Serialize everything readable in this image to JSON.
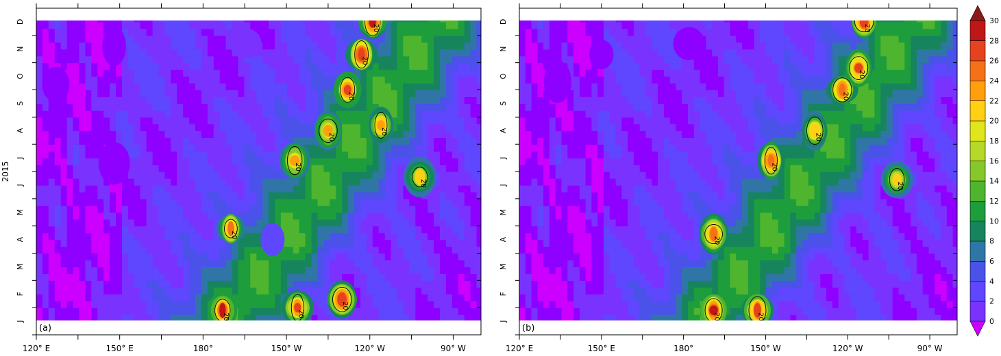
{
  "chart_data": [
    {
      "type": "heatmap",
      "panel_label": "(a)",
      "ylabel": "2015",
      "xlabel": "",
      "title": "",
      "x_ticks": [
        "120° E",
        "150° E",
        "180°",
        "150° W",
        "120° W",
        "90° W"
      ],
      "x_tick_lon": [
        120,
        150,
        180,
        210,
        240,
        270
      ],
      "x_range_lon": [
        120,
        280
      ],
      "y_ticks": [
        "J",
        "F",
        "M",
        "A",
        "M",
        "J",
        "J",
        "A",
        "S",
        "O",
        "N",
        "D"
      ],
      "y_range_month": [
        -0.5,
        11.5
      ],
      "data_range_month": [
        0,
        11
      ],
      "contour_level": 20,
      "contour_label": "20",
      "features": [
        {
          "lon": 127,
          "month": 8.7,
          "value": 1
        },
        {
          "lon": 148,
          "month": 10.1,
          "value": 0
        },
        {
          "lon": 148,
          "month": 5.8,
          "value": 1
        },
        {
          "lon": 196,
          "month": 10.2,
          "value": 2
        },
        {
          "lon": 205,
          "month": 3.0,
          "value": 4
        },
        {
          "lon": 213,
          "month": 5.9,
          "value": 24
        },
        {
          "lon": 225,
          "month": 7.0,
          "value": 24
        },
        {
          "lon": 232,
          "month": 8.5,
          "value": 28
        },
        {
          "lon": 237,
          "month": 9.8,
          "value": 29
        },
        {
          "lon": 241,
          "month": 11.0,
          "value": 30
        },
        {
          "lon": 244,
          "month": 7.2,
          "value": 25
        },
        {
          "lon": 258,
          "month": 5.3,
          "value": 22
        },
        {
          "lon": 190,
          "month": 3.4,
          "value": 26
        },
        {
          "lon": 187,
          "month": 0.4,
          "value": 30
        },
        {
          "lon": 214,
          "month": 0.5,
          "value": 28
        },
        {
          "lon": 230,
          "month": 0.8,
          "value": 29
        }
      ]
    },
    {
      "type": "heatmap",
      "panel_label": "(b)",
      "ylabel": "",
      "xlabel": "",
      "title": "",
      "x_ticks": [
        "120° E",
        "150° E",
        "180°",
        "150° W",
        "120° W",
        "90° W"
      ],
      "x_tick_lon": [
        120,
        150,
        180,
        210,
        240,
        270
      ],
      "x_range_lon": [
        120,
        280
      ],
      "y_ticks": [
        "J",
        "F",
        "M",
        "A",
        "M",
        "J",
        "J",
        "A",
        "S",
        "O",
        "N",
        "D"
      ],
      "y_range_month": [
        -0.5,
        11.5
      ],
      "data_range_month": [
        0,
        11
      ],
      "contour_level": 20,
      "contour_label": "20",
      "features": [
        {
          "lon": 134,
          "month": 8.8,
          "value": 1
        },
        {
          "lon": 150,
          "month": 9.8,
          "value": 0
        },
        {
          "lon": 182,
          "month": 10.2,
          "value": 1
        },
        {
          "lon": 212,
          "month": 5.9,
          "value": 27
        },
        {
          "lon": 228,
          "month": 7.0,
          "value": 23
        },
        {
          "lon": 238,
          "month": 8.5,
          "value": 27
        },
        {
          "lon": 244,
          "month": 9.3,
          "value": 28
        },
        {
          "lon": 246,
          "month": 11.0,
          "value": 29
        },
        {
          "lon": 258,
          "month": 5.2,
          "value": 22
        },
        {
          "lon": 191,
          "month": 3.2,
          "value": 27
        },
        {
          "lon": 191,
          "month": 0.4,
          "value": 30
        },
        {
          "lon": 207,
          "month": 0.4,
          "value": 28
        }
      ]
    }
  ],
  "colorbar": {
    "levels": [
      0,
      2,
      4,
      6,
      8,
      10,
      12,
      14,
      16,
      18,
      20,
      22,
      24,
      26,
      28,
      30
    ],
    "tick_labels": [
      "0",
      "2",
      "4",
      "6",
      "8",
      "10",
      "12",
      "14",
      "16",
      "18",
      "20",
      "22",
      "24",
      "26",
      "28",
      "30"
    ],
    "colors": [
      "#8e00ff",
      "#7a33ff",
      "#5f46ff",
      "#4a52ea",
      "#2f76a6",
      "#16855e",
      "#1e9d3c",
      "#4fb52f",
      "#86c82a",
      "#b5d829",
      "#e1e51b",
      "#ffd014",
      "#ff9f0d",
      "#f47117",
      "#e5421e",
      "#bf1616"
    ],
    "under_color": "#cc00ff",
    "over_color": "#8b1a1a"
  }
}
